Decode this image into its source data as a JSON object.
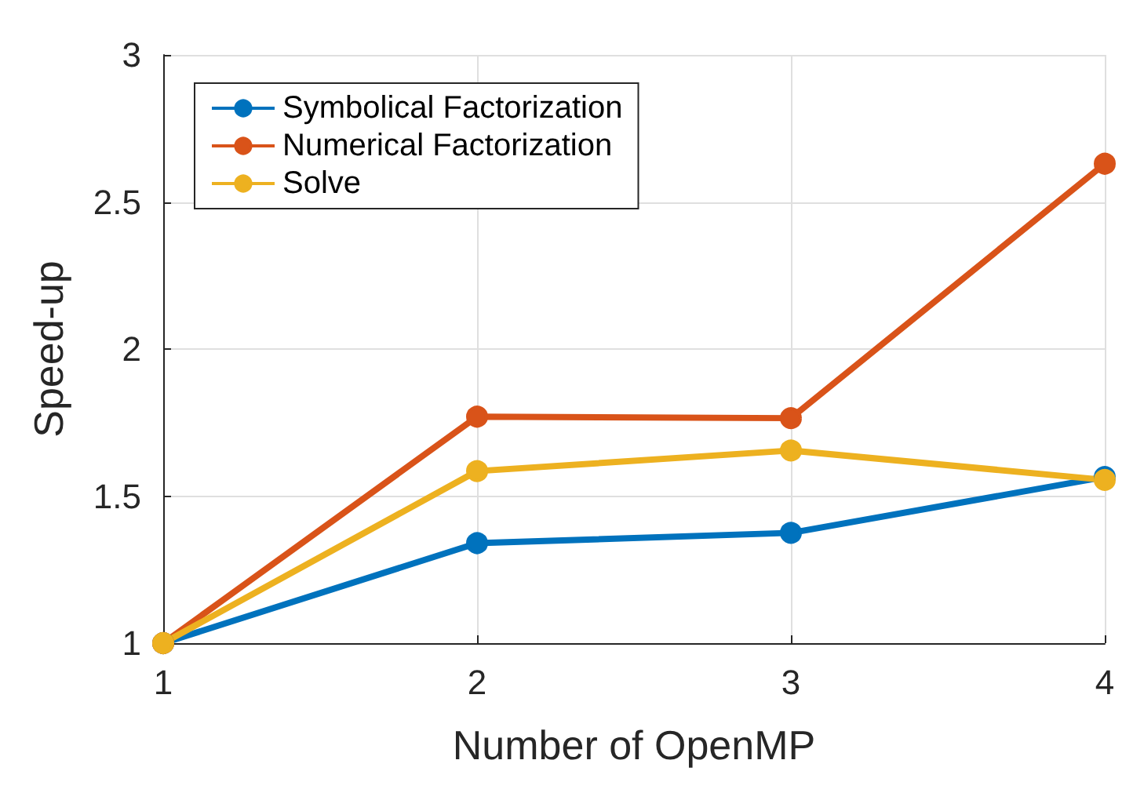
{
  "chart_data": {
    "type": "line",
    "xlabel": "Number of OpenMP",
    "ylabel": "Speed-up",
    "x": [
      1,
      2,
      3,
      4
    ],
    "series": [
      {
        "name": "Symbolical Factorization",
        "color": "#0072bd",
        "values": [
          1,
          1.34,
          1.375,
          1.565
        ]
      },
      {
        "name": "Numerical Factorization",
        "color": "#d95319",
        "values": [
          1,
          1.77,
          1.765,
          2.63
        ]
      },
      {
        "name": "Solve",
        "color": "#edb120",
        "values": [
          1,
          1.585,
          1.655,
          1.555
        ]
      }
    ],
    "xlim": [
      1,
      4
    ],
    "xticks": [
      1,
      2,
      3,
      4
    ],
    "ylim": [
      1,
      3
    ],
    "yticks": [
      1,
      1.5,
      2,
      2.5,
      3
    ],
    "grid": true,
    "legend": "top left",
    "marker": "circle",
    "line_style": "solid"
  }
}
